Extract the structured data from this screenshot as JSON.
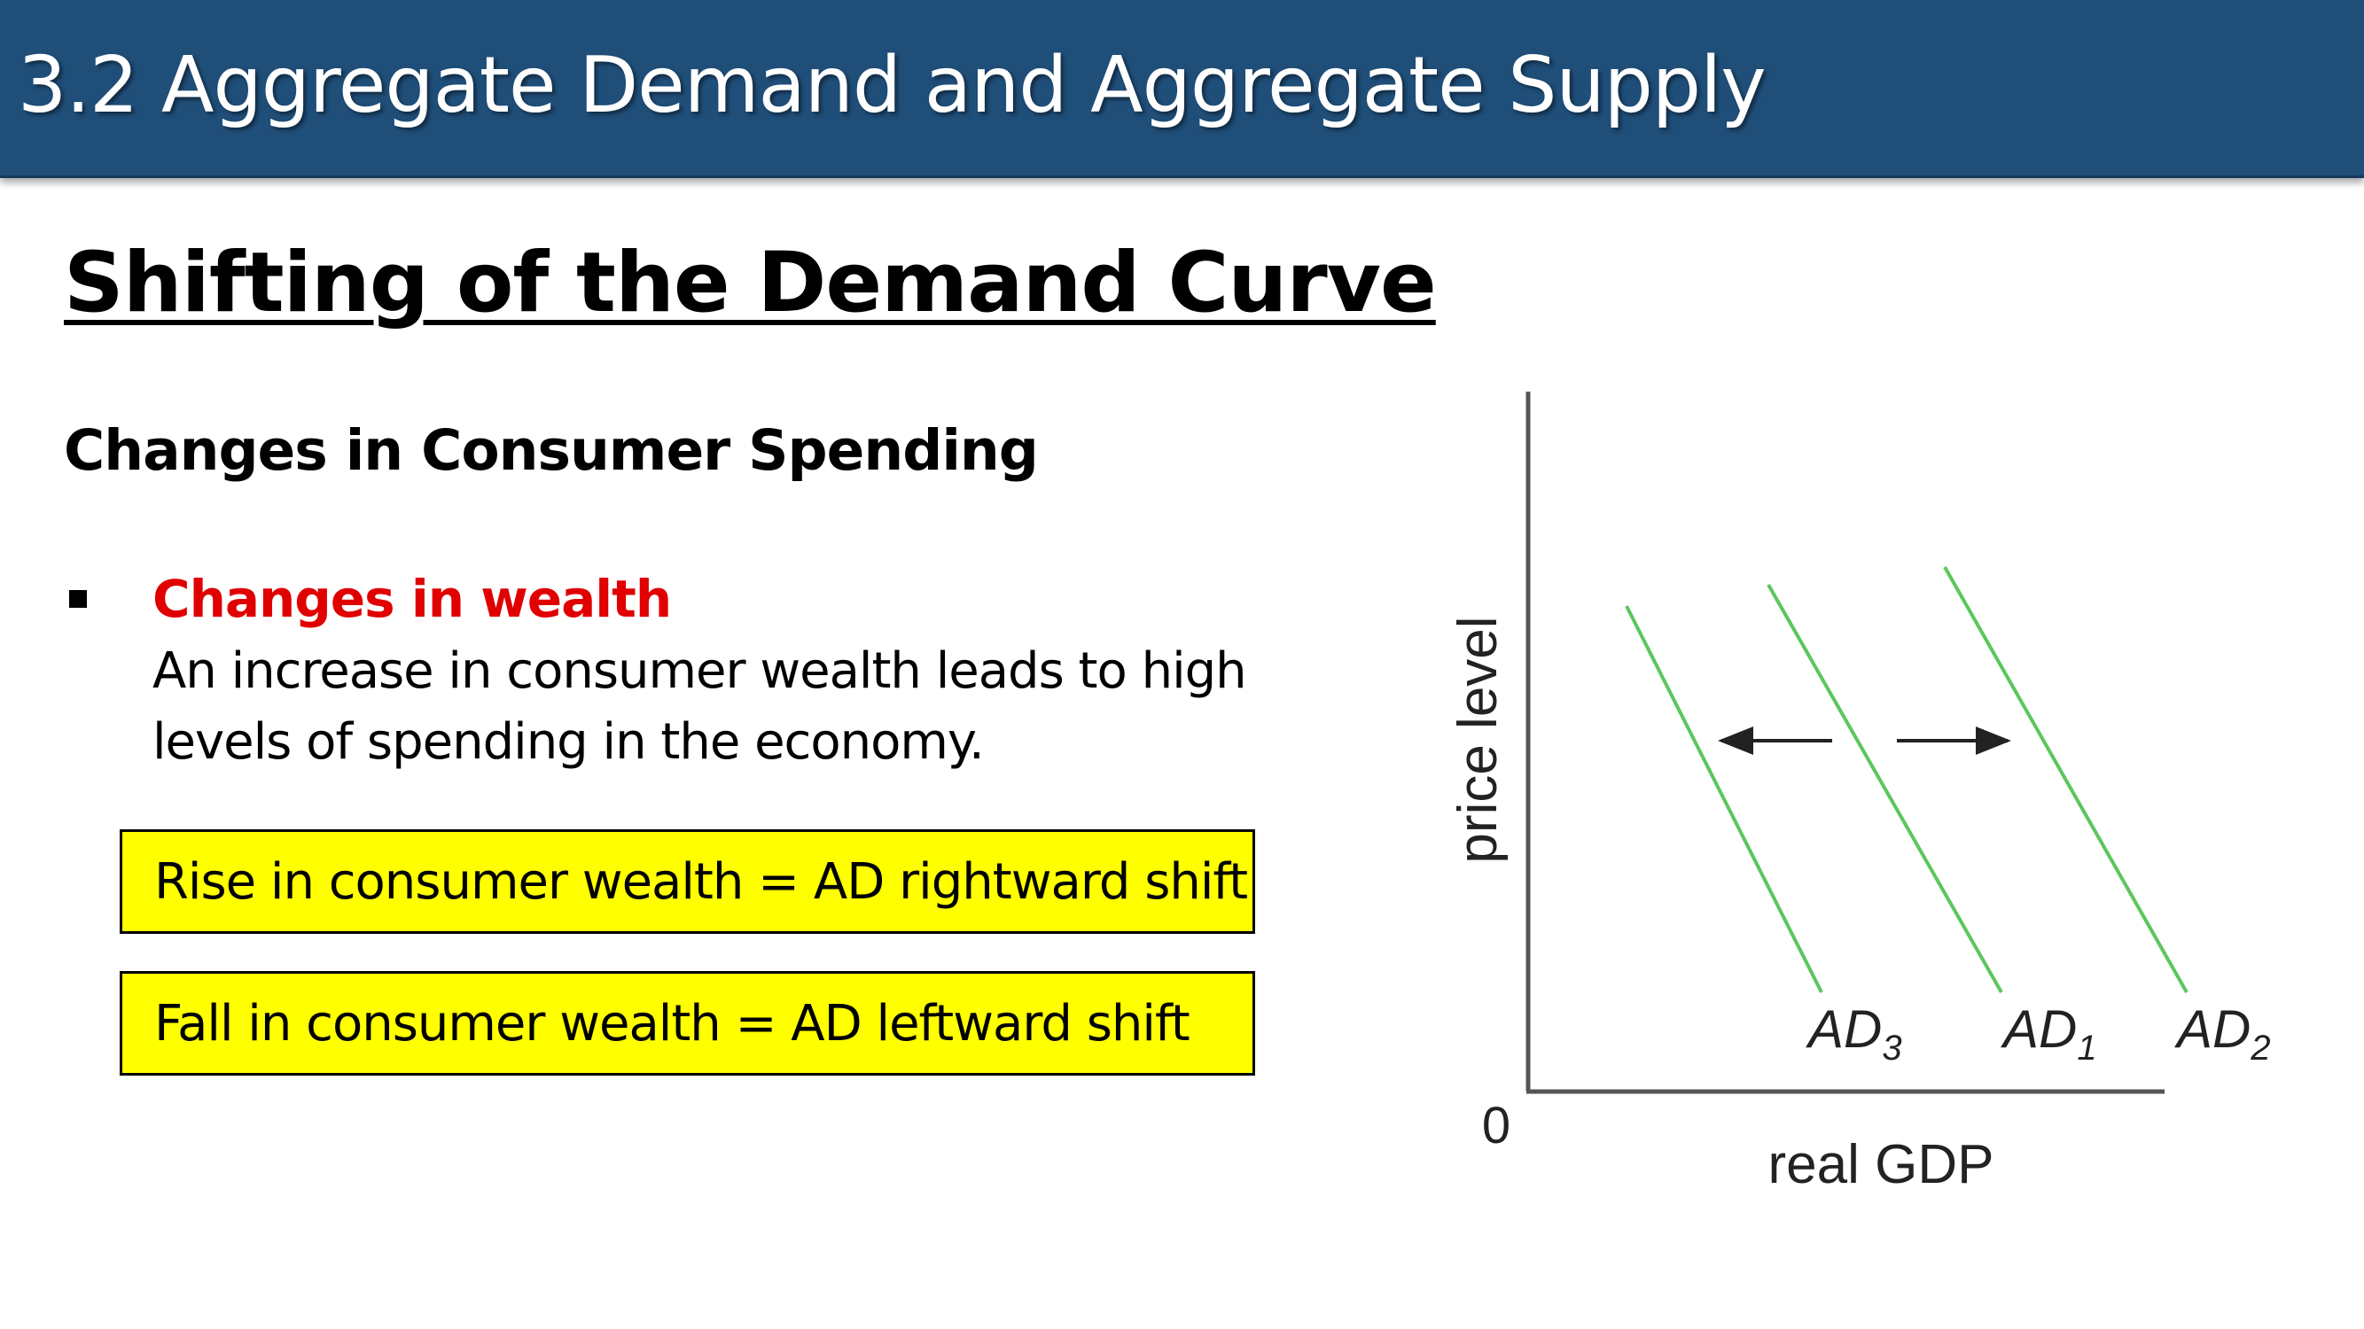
{
  "header": {
    "title": "3.2 Aggregate Demand and Aggregate Supply"
  },
  "slide": {
    "heading": "Shifting of the Demand Curve",
    "subheading": "Changes in Consumer Spending",
    "bullet": {
      "title": "Changes in wealth",
      "body": "An increase in consumer wealth leads to high levels of spending in the economy."
    },
    "boxes": [
      "Rise in consumer wealth = AD rightward shift",
      "Fall in consumer wealth = AD leftward shift"
    ]
  },
  "diagram": {
    "y_axis_label": "price level",
    "x_axis_label": "real GDP",
    "origin_label": "0",
    "curves": [
      {
        "base": "AD",
        "sub": "3"
      },
      {
        "base": "AD",
        "sub": "1"
      },
      {
        "base": "AD",
        "sub": "2"
      }
    ],
    "colors": {
      "curve": "#5cc65c",
      "axis": "#555555",
      "arrow": "#222222",
      "header_bg": "#1f4e79",
      "highlight": "#ffff00",
      "bullet_title": "#e00000"
    }
  }
}
